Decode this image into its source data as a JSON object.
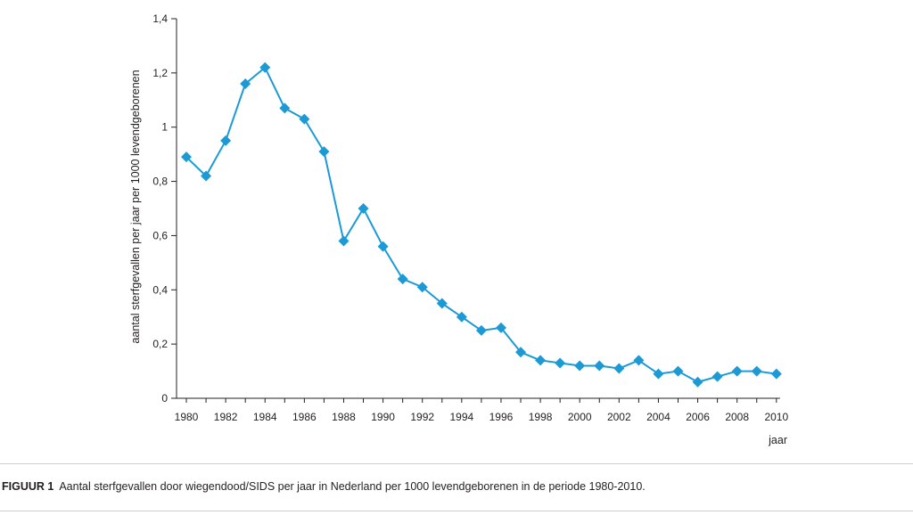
{
  "chart_data": {
    "type": "line",
    "title": "",
    "xlabel": "jaar",
    "ylabel": "aantal sterfgevallen per jaar per 1000 levendgeborenen",
    "ylim": [
      0,
      1.4
    ],
    "xlim": [
      1980,
      2010
    ],
    "grid": false,
    "legend": "none",
    "y_ticks": [
      0,
      0.2,
      0.4,
      0.6,
      0.8,
      1,
      1.2,
      1.4
    ],
    "y_tick_labels": [
      "0",
      "0,2",
      "0,4",
      "0,6",
      "0,8",
      "1",
      "1,2",
      "1,4"
    ],
    "x_tick_labels": [
      "1980",
      "1982",
      "1984",
      "1986",
      "1988",
      "1990",
      "1992",
      "1994",
      "1996",
      "1998",
      "2000",
      "2002",
      "2004",
      "2006",
      "2008",
      "2010"
    ],
    "x": [
      1980,
      1981,
      1982,
      1983,
      1984,
      1985,
      1986,
      1987,
      1988,
      1989,
      1990,
      1991,
      1992,
      1993,
      1994,
      1995,
      1996,
      1997,
      1998,
      1999,
      2000,
      2001,
      2002,
      2003,
      2004,
      2005,
      2006,
      2007,
      2008,
      2009,
      2010
    ],
    "series": [
      {
        "name": "SIDS",
        "color": "#1c9ad6",
        "marker": "diamond",
        "values": [
          0.89,
          0.82,
          0.95,
          1.16,
          1.22,
          1.07,
          1.03,
          0.91,
          0.58,
          0.7,
          0.56,
          0.44,
          0.41,
          0.35,
          0.3,
          0.25,
          0.26,
          0.17,
          0.14,
          0.13,
          0.12,
          0.12,
          0.11,
          0.14,
          0.09,
          0.1,
          0.06,
          0.08,
          0.1,
          0.1,
          0.09
        ]
      }
    ]
  },
  "caption": {
    "label": "FIGUUR 1",
    "text": "Aantal sterfgevallen door wiegendood/SIDS per jaar in Nederland per 1000 levendgeborenen in de periode 1980-2010."
  }
}
